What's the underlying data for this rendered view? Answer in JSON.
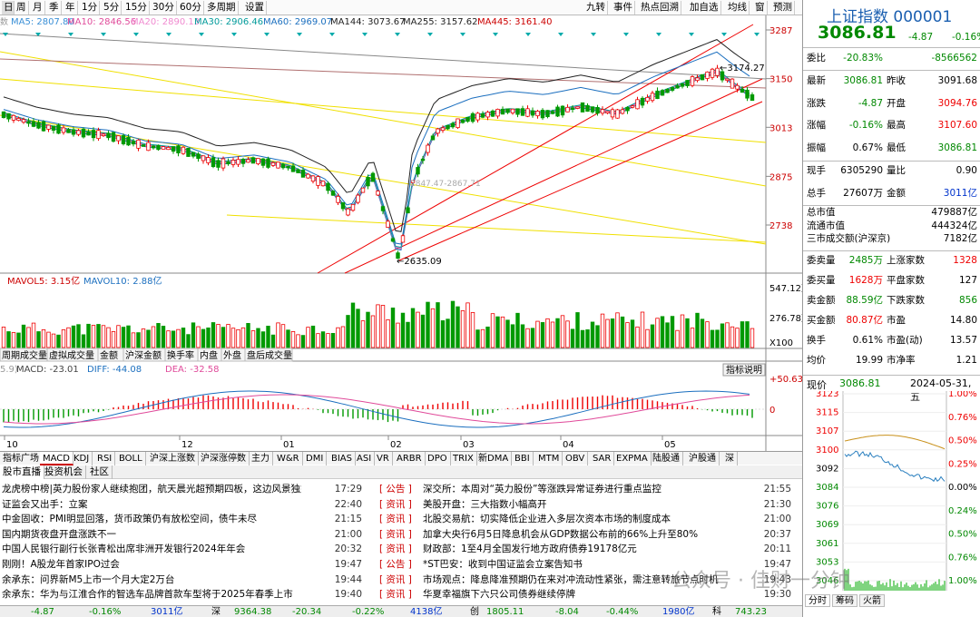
{
  "toolbar": {
    "left_buttons": [
      "周",
      "月",
      "季",
      "年",
      "1分",
      "5分",
      "15分",
      "30分",
      "60分",
      "多周期",
      "设置"
    ],
    "active": "日",
    "right_buttons": [
      "九转",
      "事件",
      "热点回溯",
      "加自选",
      "均线",
      "窗",
      "预测"
    ]
  },
  "ma_legend": [
    {
      "label": "MA5: 2807.80",
      "color": "#3a8fd6"
    },
    {
      "label": "MA10: 2846.56",
      "color": "#e04a9a"
    },
    {
      "label": "MA20: 2890.13",
      "color": "#f08ad0"
    },
    {
      "label": "MA30: 2906.46",
      "color": "#009a9a"
    },
    {
      "label": "MA60: 2969.07",
      "color": "#1b6fbf"
    },
    {
      "label": "MA144: 3073.67",
      "color": "#222222"
    },
    {
      "label": "MA255: 3157.62",
      "color": "#222222"
    },
    {
      "label": "MA445: 3161.40",
      "color": "#cc0000"
    }
  ],
  "price_axis": [
    "3287",
    "3150",
    "3013",
    "2875",
    "2738"
  ],
  "annotations": {
    "high": "3174.27",
    "low": "2635.09",
    "zone": "2847.47-2867.71",
    "peak_number": "3174.27"
  },
  "volume": {
    "legend": [
      {
        "label": "MAVOL5: 3.15亿",
        "color": "#cc0000"
      },
      {
        "label": "MAVOL10: 2.88亿",
        "color": "#1b6fbf"
      }
    ],
    "axis": [
      "547.12万",
      "276.78万",
      "X100"
    ]
  },
  "volume_tabs": [
    "周期成交量",
    "虚拟成交量",
    "金额",
    "沪深金额",
    "换手率",
    "内盘",
    "外盘",
    "盘后成交量"
  ],
  "macd": {
    "legend": [
      {
        "label": "MACD: -23.01",
        "color": "#444"
      },
      {
        "label": "DIFF: -44.08",
        "color": "#1b6fbf"
      },
      {
        "label": "DEA: -32.58",
        "color": "#e04a9a"
      }
    ],
    "axis": [
      "+50.63",
      "0"
    ],
    "help": "指标说明",
    "prefix": "5.9)"
  },
  "x_axis": [
    "10",
    "12",
    "01",
    "02",
    "03",
    "04",
    "05"
  ],
  "indicator_tabs": [
    "指标广场",
    "MACD",
    "KDJ",
    "RSI",
    "BOLL",
    "沪深上涨数",
    "沪深涨停数",
    "主力",
    "W&R",
    "DMI",
    "BIAS",
    "ASI",
    "VR",
    "ARBR",
    "DPO",
    "TRIX",
    "新DMA",
    "BBI",
    "MTM",
    "OBV",
    "SAR",
    "EXPMA",
    "陆股通",
    "沪股通",
    "深"
  ],
  "indicator_active": "MACD",
  "news_tabs": [
    "股市直播",
    "投资机会",
    "社区"
  ],
  "news_left": [
    {
      "title": "龙虎榜中榜|英力股份家人继续抱团，航天晨光超预期四板，这边风景独好!",
      "time": "17:29"
    },
    {
      "title": "证监会又出手：立案",
      "time": "22:40"
    },
    {
      "title": "中金固收：PMI明显回落，货币政策仍有放松空间，债牛未尽",
      "time": "21:15"
    },
    {
      "title": "国内期货夜盘开盘涨跌不一",
      "time": "21:00"
    },
    {
      "title": "中国人民银行副行长张青松出席非洲开发银行2024年年会",
      "time": "20:32"
    },
    {
      "title": "刚刚！A股龙年首家IPO过会",
      "time": "19:47"
    },
    {
      "title": "余承东：问界新M5上市一个月大定2万台",
      "time": "19:44"
    },
    {
      "title": "余承东：华为与江淮合作的智选车品牌首款车型将于2025年春季上市",
      "time": "19:40"
    }
  ],
  "news_right": [
    {
      "tag": "[ 公告 ]",
      "title": "深交所：本周对“英力股份”等涨跌异常证券进行重点监控",
      "time": "21:55"
    },
    {
      "tag": "[ 资讯 ]",
      "title": "美股开盘：三大指数小幅高开",
      "time": "21:30"
    },
    {
      "tag": "[ 资讯 ]",
      "title": "北股交易航：切实降低企业进入多层次资本市场的制度成本",
      "time": "21:00"
    },
    {
      "tag": "[ 资讯 ]",
      "title": "加拿大央行6月5日降息机会从GDP数据公布前的66%上升至80%",
      "time": "20:37"
    },
    {
      "tag": "[ 资讯 ]",
      "title": "财政部：1至4月全国发行地方政府债券19178亿元",
      "time": "20:11"
    },
    {
      "tag": "[ 公告 ]",
      "title": "*ST巴安：收到中国证监会立案告知书",
      "time": "19:47"
    },
    {
      "tag": "[ 资讯 ]",
      "title": "市场观点：降息降准预期仍在来对冲流动性紧张，需注意转旅节点时机",
      "time": "19:43"
    },
    {
      "tag": "[ 资讯 ]",
      "title": "华夏幸福旗下六只公司债券继续停牌",
      "time": "19:30"
    }
  ],
  "status_bar": [
    {
      "text": "-4.87",
      "color": "#080"
    },
    {
      "text": "-0.16%",
      "color": "#080"
    },
    {
      "text": "3011亿",
      "color": "#03c"
    },
    {
      "text": "深",
      "color": "#000"
    },
    {
      "text": "9364.38",
      "color": "#080"
    },
    {
      "text": "-20.34",
      "color": "#080"
    },
    {
      "text": "-0.22%",
      "color": "#080"
    },
    {
      "text": "4138亿",
      "color": "#03c"
    },
    {
      "text": "创",
      "color": "#000"
    },
    {
      "text": "1805.11",
      "color": "#080"
    },
    {
      "text": "-8.04",
      "color": "#080"
    },
    {
      "text": "-0.44%",
      "color": "#080"
    },
    {
      "text": "1980亿",
      "color": "#03c"
    },
    {
      "text": "科",
      "color": "#000"
    },
    {
      "text": "743.23",
      "color": "#080"
    }
  ],
  "quote": {
    "name": "上证指数 000001",
    "price": "3086.81",
    "change": "-4.87",
    "pct": "-0.16%",
    "rows_a": [
      {
        "l1": "委比",
        "v1": "-20.83%",
        "c1": "green",
        "l2": "",
        "v2": "-8566562",
        "c2": "green"
      }
    ],
    "rows_b": [
      {
        "l1": "最新",
        "v1": "3086.81",
        "c1": "green",
        "l2": "昨收",
        "v2": "3091.68",
        "c2": "black"
      },
      {
        "l1": "涨跌",
        "v1": "-4.87",
        "c1": "green",
        "l2": "开盘",
        "v2": "3094.76",
        "c2": "red"
      },
      {
        "l1": "涨幅",
        "v1": "-0.16%",
        "c1": "green",
        "l2": "最高",
        "v2": "3107.60",
        "c2": "red"
      },
      {
        "l1": "振幅",
        "v1": "0.67%",
        "c1": "black",
        "l2": "最低",
        "v2": "3086.81",
        "c2": "green"
      }
    ],
    "rows_c": [
      {
        "l1": "现手",
        "v1": "6305290",
        "c1": "black",
        "l2": "量比",
        "v2": "0.90",
        "c2": "black"
      },
      {
        "l1": "总手",
        "v1": "27607万",
        "c1": "black",
        "l2": "金额",
        "v2": "3011亿",
        "c2": "blue"
      }
    ],
    "rows_d": [
      {
        "label": "总市值",
        "value": "479887亿"
      },
      {
        "label": "流通市值",
        "value": "444324亿"
      },
      {
        "label": "三市成交额(沪深京)",
        "value": "7182亿"
      }
    ],
    "rows_e": [
      {
        "l1": "委卖量",
        "v1": "2485万",
        "c1": "green",
        "l2": "上涨家数",
        "v2": "1328",
        "c2": "red"
      },
      {
        "l1": "委买量",
        "v1": "1628万",
        "c1": "red",
        "l2": "平盘家数",
        "v2": "127",
        "c2": "black"
      },
      {
        "l1": "卖金额",
        "v1": "88.59亿",
        "c1": "green",
        "l2": "下跌家数",
        "v2": "856",
        "c2": "green"
      },
      {
        "l1": "买金额",
        "v1": "80.87亿",
        "c1": "red",
        "l2": "市盈",
        "v2": "14.80",
        "c2": "black"
      },
      {
        "l1": "换手",
        "v1": "0.61%",
        "c1": "black",
        "l2": "市盈(动)",
        "v2": "13.57",
        "c2": "black"
      },
      {
        "l1": "均价",
        "v1": "19.99",
        "c1": "black",
        "l2": "市净率",
        "v2": "1.21",
        "c2": "black"
      }
    ],
    "intraday": {
      "label": "现价",
      "price": "3086.81",
      "date": "2024-05-31,五",
      "left_axis": [
        "3123",
        "3115",
        "3107",
        "3100",
        "3092",
        "3084",
        "3076",
        "3069",
        "3061",
        "3053",
        "3046"
      ],
      "right_axis": [
        "1.00%",
        "0.76%",
        "0.50%",
        "0.25%",
        "0.00%",
        "0.24%",
        "0.50%",
        "0.76%",
        "1.00%"
      ],
      "tabs": [
        "分时",
        "筹码",
        "火箭"
      ]
    }
  },
  "watermark": "公众号 · 佳财一分钟"
}
